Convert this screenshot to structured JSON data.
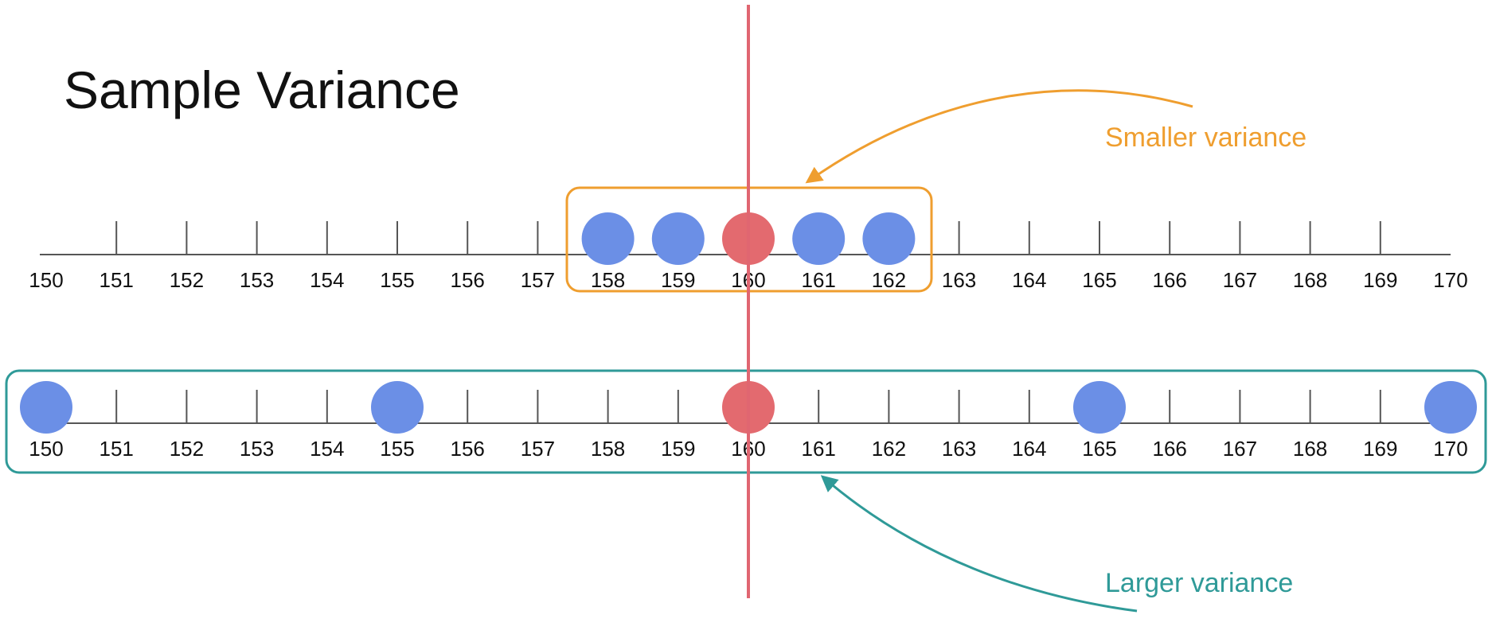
{
  "title": "Sample Variance",
  "axis": {
    "min": 150,
    "max": 170,
    "step": 1
  },
  "mean": 160,
  "top_line": {
    "points": [
      158,
      159,
      161,
      162
    ],
    "mean_point": 160,
    "label": "Smaller variance"
  },
  "bottom_line": {
    "points": [
      150,
      155,
      165,
      170
    ],
    "mean_point": 160,
    "label": "Larger variance"
  },
  "colors": {
    "point": "#6b8fe6",
    "mean_point": "#e36a6f",
    "mean_line": "#e06671",
    "small_box": "#ef9e2f",
    "large_box": "#2f9a98",
    "axis": "#555555"
  }
}
